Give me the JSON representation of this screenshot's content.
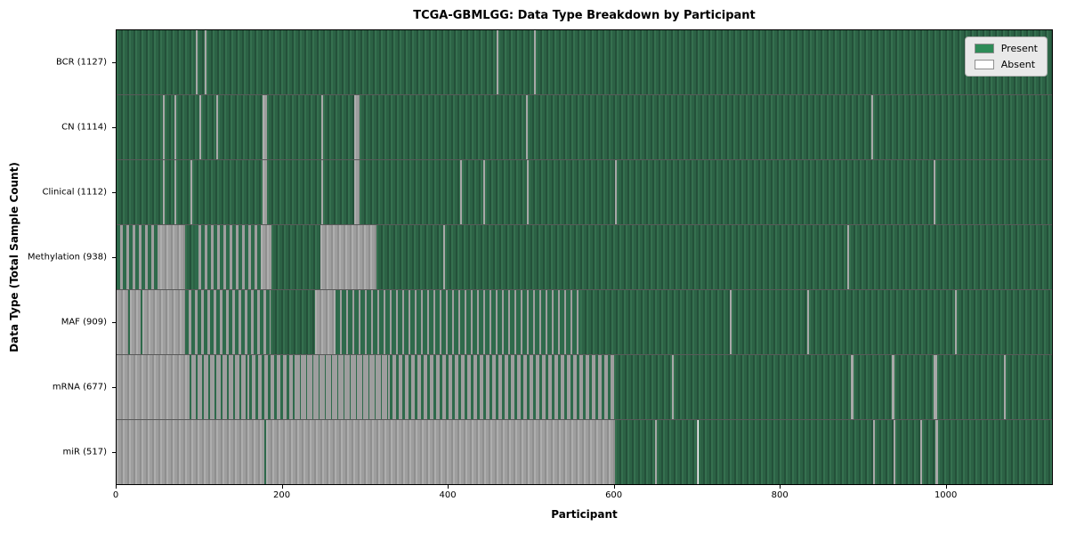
{
  "title": "TCGA-GBMLGG: Data Type Breakdown by Participant",
  "axes": {
    "x_label": "Participant",
    "y_label": "Data Type (Total Sample Count)",
    "x_ticks": [
      0,
      200,
      400,
      600,
      800,
      1000
    ],
    "x_max": 1129
  },
  "legend": {
    "items": [
      {
        "label": "Present",
        "color": "#2e8b57"
      },
      {
        "label": "Absent",
        "color": "#ffffff"
      }
    ]
  },
  "colors": {
    "present_hi": "#35704f",
    "present_mid": "#2c6245",
    "present_lo": "#24513a",
    "present_solid": "#2e6a4b",
    "absent_hi": "#aeaeae",
    "absent_mid": "#9e9e9e",
    "absent_lo": "#8f8f8f",
    "absent_solid": "#a8a8a8",
    "legend_present": "#2e8b57",
    "legend_absent": "#ffffff"
  },
  "chart_data": {
    "type": "heatmap",
    "title": "TCGA-GBMLGG: Data Type Breakdown by Participant",
    "xlabel": "Participant",
    "ylabel": "Data Type (Total Sample Count)",
    "x_range": [
      0,
      1129
    ],
    "x_ticks": [
      0,
      200,
      400,
      600,
      800,
      1000
    ],
    "legend": [
      "Present",
      "Absent"
    ],
    "states": [
      "present",
      "absent",
      "mixed"
    ],
    "rows": [
      {
        "label": "BCR (1127)",
        "data_type": "BCR",
        "sample_count": 1127,
        "segments": [
          [
            0,
            96,
            "present"
          ],
          [
            96,
            98,
            "absent"
          ],
          [
            98,
            106,
            "present"
          ],
          [
            106,
            108,
            "absent"
          ],
          [
            108,
            459,
            "present"
          ],
          [
            459,
            461,
            "absent"
          ],
          [
            461,
            504,
            "present"
          ],
          [
            504,
            506,
            "absent"
          ],
          [
            506,
            1129,
            "present"
          ]
        ]
      },
      {
        "label": "CN (1114)",
        "data_type": "CN",
        "sample_count": 1114,
        "segments": [
          [
            0,
            56,
            "present"
          ],
          [
            56,
            58,
            "absent"
          ],
          [
            58,
            70,
            "present"
          ],
          [
            70,
            72,
            "absent"
          ],
          [
            72,
            100,
            "present"
          ],
          [
            100,
            102,
            "absent"
          ],
          [
            102,
            120,
            "present"
          ],
          [
            120,
            122,
            "absent"
          ],
          [
            122,
            176,
            "present"
          ],
          [
            176,
            182,
            "absent"
          ],
          [
            182,
            247,
            "present"
          ],
          [
            247,
            249,
            "absent"
          ],
          [
            249,
            287,
            "present"
          ],
          [
            287,
            293,
            "absent"
          ],
          [
            293,
            494,
            "present"
          ],
          [
            494,
            496,
            "absent"
          ],
          [
            496,
            911,
            "present"
          ],
          [
            911,
            913,
            "absent"
          ],
          [
            913,
            1129,
            "present"
          ]
        ]
      },
      {
        "label": "Clinical (1112)",
        "data_type": "Clinical",
        "sample_count": 1112,
        "segments": [
          [
            0,
            56,
            "present"
          ],
          [
            56,
            58,
            "absent"
          ],
          [
            58,
            70,
            "present"
          ],
          [
            70,
            72,
            "absent"
          ],
          [
            72,
            89,
            "present"
          ],
          [
            89,
            91,
            "absent"
          ],
          [
            91,
            176,
            "present"
          ],
          [
            176,
            182,
            "absent"
          ],
          [
            182,
            247,
            "present"
          ],
          [
            247,
            249,
            "absent"
          ],
          [
            249,
            287,
            "present"
          ],
          [
            287,
            293,
            "absent"
          ],
          [
            293,
            415,
            "present"
          ],
          [
            415,
            417,
            "absent"
          ],
          [
            417,
            443,
            "present"
          ],
          [
            443,
            445,
            "absent"
          ],
          [
            445,
            495,
            "present"
          ],
          [
            495,
            497,
            "absent"
          ],
          [
            497,
            602,
            "present"
          ],
          [
            602,
            604,
            "absent"
          ],
          [
            604,
            986,
            "present"
          ],
          [
            986,
            988,
            "absent"
          ],
          [
            988,
            1129,
            "present"
          ]
        ]
      },
      {
        "label": "Methylation (938)",
        "data_type": "Methylation",
        "sample_count": 938,
        "segments": [
          [
            0,
            53,
            "mixed",
            0.55
          ],
          [
            53,
            83,
            "absent"
          ],
          [
            83,
            94,
            "present"
          ],
          [
            94,
            174,
            "mixed",
            0.55
          ],
          [
            174,
            187,
            "absent"
          ],
          [
            187,
            246,
            "present"
          ],
          [
            246,
            314,
            "absent"
          ],
          [
            314,
            394,
            "present"
          ],
          [
            394,
            396,
            "absent"
          ],
          [
            396,
            882,
            "present"
          ],
          [
            882,
            884,
            "absent"
          ],
          [
            884,
            1129,
            "present"
          ]
        ]
      },
      {
        "label": "MAF (909)",
        "data_type": "MAF",
        "sample_count": 909,
        "segments": [
          [
            0,
            14,
            "absent"
          ],
          [
            14,
            16,
            "present"
          ],
          [
            16,
            29,
            "absent"
          ],
          [
            29,
            31,
            "present"
          ],
          [
            31,
            83,
            "absent"
          ],
          [
            83,
            186,
            "mixed",
            0.6
          ],
          [
            186,
            240,
            "present"
          ],
          [
            240,
            264,
            "absent"
          ],
          [
            264,
            560,
            "mixed",
            0.65
          ],
          [
            560,
            740,
            "present"
          ],
          [
            740,
            742,
            "absent"
          ],
          [
            742,
            834,
            "present"
          ],
          [
            834,
            836,
            "absent"
          ],
          [
            836,
            1012,
            "present"
          ],
          [
            1012,
            1014,
            "absent"
          ],
          [
            1014,
            1129,
            "present"
          ]
        ]
      },
      {
        "label": "mRNA (677)",
        "data_type": "mRNA",
        "sample_count": 677,
        "segments": [
          [
            0,
            88,
            "absent"
          ],
          [
            88,
            160,
            "mixed",
            0.3
          ],
          [
            160,
            214,
            "mixed",
            0.45
          ],
          [
            214,
            330,
            "mixed",
            0.12
          ],
          [
            330,
            600,
            "mixed",
            0.45
          ],
          [
            600,
            670,
            "present"
          ],
          [
            670,
            672,
            "absent"
          ],
          [
            672,
            886,
            "present"
          ],
          [
            886,
            889,
            "absent"
          ],
          [
            889,
            936,
            "present"
          ],
          [
            936,
            939,
            "absent"
          ],
          [
            939,
            986,
            "present"
          ],
          [
            986,
            990,
            "absent"
          ],
          [
            990,
            1071,
            "present"
          ],
          [
            1071,
            1073,
            "absent"
          ],
          [
            1073,
            1129,
            "present"
          ]
        ]
      },
      {
        "label": "miR (517)",
        "data_type": "miR",
        "sample_count": 517,
        "segments": [
          [
            0,
            178,
            "absent"
          ],
          [
            178,
            180,
            "present"
          ],
          [
            180,
            602,
            "absent"
          ],
          [
            602,
            650,
            "present"
          ],
          [
            650,
            652,
            "absent"
          ],
          [
            652,
            700,
            "present"
          ],
          [
            700,
            702,
            "absent"
          ],
          [
            702,
            913,
            "present"
          ],
          [
            913,
            915,
            "absent"
          ],
          [
            915,
            938,
            "present"
          ],
          [
            938,
            940,
            "absent"
          ],
          [
            940,
            970,
            "present"
          ],
          [
            970,
            972,
            "absent"
          ],
          [
            972,
            988,
            "present"
          ],
          [
            988,
            991,
            "absent"
          ],
          [
            991,
            1129,
            "present"
          ]
        ]
      }
    ]
  }
}
